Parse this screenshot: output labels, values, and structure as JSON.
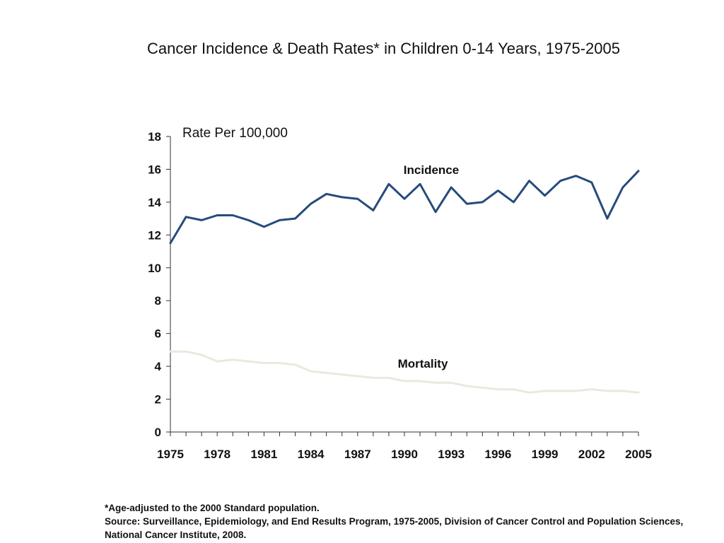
{
  "title": "Cancer Incidence & Death Rates* in Children 0-14 Years, 1975-2005",
  "footnote": {
    "line1": "*Age-adjusted to the 2000 Standard population.",
    "line2": "Source: Surveillance, Epidemiology, and End Results Program, 1975-2005, Division of Cancer Control and Population Sciences, National Cancer Institute, 2008."
  },
  "chart_data": {
    "type": "line",
    "ylabel": "Rate Per 100,000",
    "xlabel": "",
    "ylim": [
      0,
      18
    ],
    "xlim": [
      1975,
      2005
    ],
    "yticks": [
      0,
      2,
      4,
      6,
      8,
      10,
      12,
      14,
      16,
      18
    ],
    "xtick_labels": [
      "1975",
      "1978",
      "1981",
      "1984",
      "1987",
      "1990",
      "1993",
      "1996",
      "1999",
      "2002",
      "2005"
    ],
    "grid": false,
    "x": [
      1975,
      1976,
      1977,
      1978,
      1979,
      1980,
      1981,
      1982,
      1983,
      1984,
      1985,
      1986,
      1987,
      1988,
      1989,
      1990,
      1991,
      1992,
      1993,
      1994,
      1995,
      1996,
      1997,
      1998,
      1999,
      2000,
      2001,
      2002,
      2003,
      2004,
      2005
    ],
    "series": [
      {
        "name": "Incidence",
        "color": "#264b7b",
        "values": [
          11.5,
          13.1,
          12.9,
          13.2,
          13.2,
          12.9,
          12.5,
          12.9,
          13.0,
          13.9,
          14.5,
          14.3,
          14.2,
          13.5,
          15.1,
          14.2,
          15.1,
          13.4,
          14.9,
          13.9,
          14.0,
          14.7,
          14.0,
          15.3,
          14.4,
          15.3,
          15.6,
          15.2,
          13.0,
          14.9,
          15.9
        ]
      },
      {
        "name": "Mortality",
        "color": "#e9e9df",
        "values": [
          4.9,
          4.9,
          4.7,
          4.3,
          4.4,
          4.3,
          4.2,
          4.2,
          4.1,
          3.7,
          3.6,
          3.5,
          3.4,
          3.3,
          3.3,
          3.1,
          3.1,
          3.0,
          3.0,
          2.8,
          2.7,
          2.6,
          2.6,
          2.4,
          2.5,
          2.5,
          2.5,
          2.6,
          2.5,
          2.5,
          2.4
        ]
      }
    ]
  }
}
